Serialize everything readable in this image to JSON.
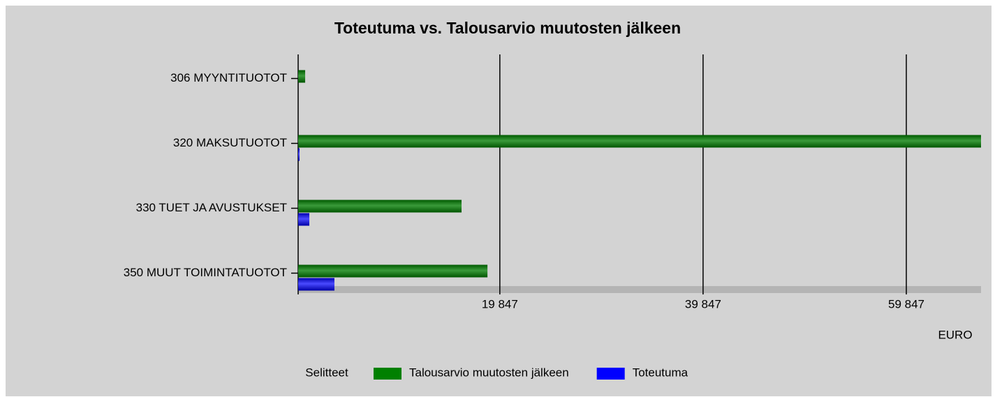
{
  "chart_data": {
    "type": "hbar",
    "title": "Toteutuma vs. Talousarvio muutosten jälkeen",
    "categories": [
      "306 MYYNTITUOTOT",
      "320 MAKSUTUOTOT",
      "330 TUET JA AVUSTUKSET",
      "350 MUUT TOIMINTATUOTOT"
    ],
    "series": [
      {
        "name": "Talousarvio muutosten jälkeen",
        "color": "#008000",
        "values": [
          690,
          67200,
          16080,
          18630
        ]
      },
      {
        "name": "Toteutuma",
        "color": "#0000ff",
        "values": [
          0,
          140,
          1100,
          3570
        ]
      }
    ],
    "xlim": [
      0,
      67200
    ],
    "xticks": [
      {
        "value": 19847,
        "label": "19 847"
      },
      {
        "value": 39847,
        "label": "39 847"
      },
      {
        "value": 59847,
        "label": "59 847"
      }
    ],
    "xlabel": "EURO",
    "legend_title": "Selitteet",
    "grid": true
  }
}
